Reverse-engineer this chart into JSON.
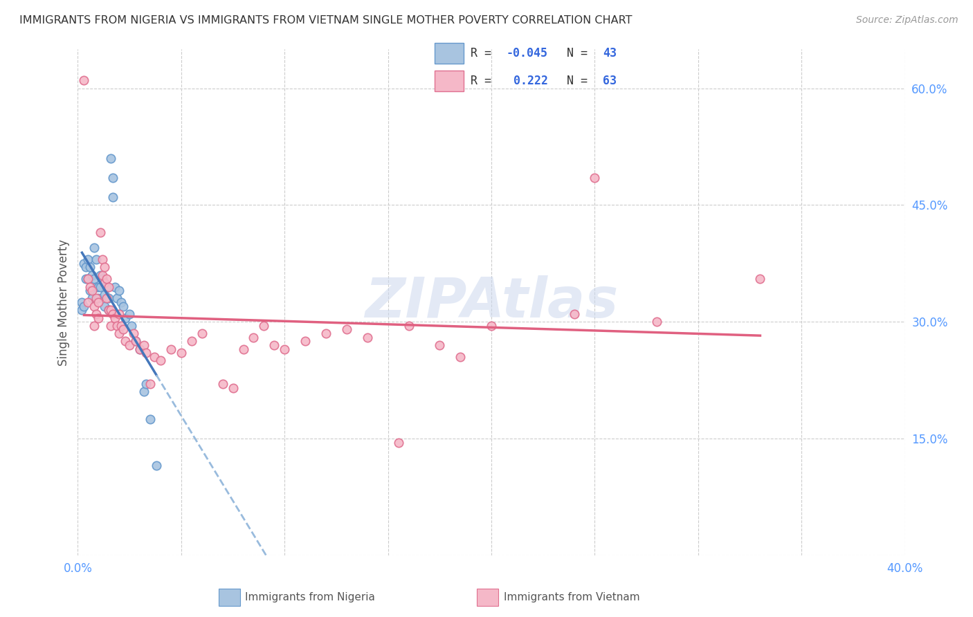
{
  "title": "IMMIGRANTS FROM NIGERIA VS IMMIGRANTS FROM VIETNAM SINGLE MOTHER POVERTY CORRELATION CHART",
  "source": "Source: ZipAtlas.com",
  "ylabel": "Single Mother Poverty",
  "xlim": [
    0.0,
    0.4
  ],
  "ylim": [
    0.0,
    0.65
  ],
  "xtick_positions": [
    0.0,
    0.05,
    0.1,
    0.15,
    0.2,
    0.25,
    0.3,
    0.35,
    0.4
  ],
  "xticklabels": [
    "0.0%",
    "",
    "",
    "",
    "",
    "",
    "",
    "",
    "40.0%"
  ],
  "ytick_positions": [
    0.0,
    0.15,
    0.3,
    0.45,
    0.6
  ],
  "yticklabels_right": [
    "",
    "15.0%",
    "30.0%",
    "45.0%",
    "60.0%"
  ],
  "nigeria_color": "#a8c4e0",
  "nigeria_edge_color": "#6699cc",
  "vietnam_color": "#f5b8c8",
  "vietnam_edge_color": "#e07090",
  "nigeria_R": -0.045,
  "nigeria_N": 43,
  "vietnam_R": 0.222,
  "vietnam_N": 63,
  "watermark": "ZIPAtlas",
  "nigeria_line_color": "#4477bb",
  "nigeria_dash_color": "#99bbdd",
  "vietnam_line_color": "#e06080",
  "grid_color": "#cccccc",
  "bg_color": "#ffffff",
  "title_color": "#333333",
  "axis_color": "#5599ff",
  "marker_size": 80,
  "nigeria_points": [
    [
      0.002,
      0.325
    ],
    [
      0.002,
      0.315
    ],
    [
      0.003,
      0.375
    ],
    [
      0.003,
      0.32
    ],
    [
      0.004,
      0.37
    ],
    [
      0.004,
      0.355
    ],
    [
      0.005,
      0.38
    ],
    [
      0.005,
      0.355
    ],
    [
      0.006,
      0.37
    ],
    [
      0.006,
      0.34
    ],
    [
      0.007,
      0.36
    ],
    [
      0.007,
      0.33
    ],
    [
      0.008,
      0.395
    ],
    [
      0.008,
      0.355
    ],
    [
      0.009,
      0.38
    ],
    [
      0.009,
      0.345
    ],
    [
      0.01,
      0.345
    ],
    [
      0.01,
      0.33
    ],
    [
      0.011,
      0.36
    ],
    [
      0.011,
      0.345
    ],
    [
      0.012,
      0.355
    ],
    [
      0.013,
      0.335
    ],
    [
      0.013,
      0.32
    ],
    [
      0.014,
      0.345
    ],
    [
      0.015,
      0.33
    ],
    [
      0.015,
      0.315
    ],
    [
      0.016,
      0.51
    ],
    [
      0.017,
      0.485
    ],
    [
      0.017,
      0.46
    ],
    [
      0.018,
      0.345
    ],
    [
      0.019,
      0.33
    ],
    [
      0.02,
      0.34
    ],
    [
      0.021,
      0.325
    ],
    [
      0.022,
      0.32
    ],
    [
      0.023,
      0.305
    ],
    [
      0.025,
      0.31
    ],
    [
      0.026,
      0.295
    ],
    [
      0.028,
      0.275
    ],
    [
      0.03,
      0.265
    ],
    [
      0.032,
      0.21
    ],
    [
      0.033,
      0.22
    ],
    [
      0.035,
      0.175
    ],
    [
      0.038,
      0.115
    ]
  ],
  "vietnam_points": [
    [
      0.003,
      0.61
    ],
    [
      0.005,
      0.355
    ],
    [
      0.005,
      0.325
    ],
    [
      0.006,
      0.345
    ],
    [
      0.007,
      0.34
    ],
    [
      0.008,
      0.32
    ],
    [
      0.008,
      0.295
    ],
    [
      0.009,
      0.33
    ],
    [
      0.009,
      0.31
    ],
    [
      0.01,
      0.325
    ],
    [
      0.01,
      0.305
    ],
    [
      0.011,
      0.415
    ],
    [
      0.012,
      0.38
    ],
    [
      0.012,
      0.36
    ],
    [
      0.013,
      0.37
    ],
    [
      0.013,
      0.35
    ],
    [
      0.014,
      0.355
    ],
    [
      0.014,
      0.33
    ],
    [
      0.015,
      0.345
    ],
    [
      0.015,
      0.315
    ],
    [
      0.016,
      0.315
    ],
    [
      0.016,
      0.295
    ],
    [
      0.017,
      0.31
    ],
    [
      0.018,
      0.305
    ],
    [
      0.019,
      0.295
    ],
    [
      0.02,
      0.31
    ],
    [
      0.02,
      0.285
    ],
    [
      0.021,
      0.295
    ],
    [
      0.022,
      0.29
    ],
    [
      0.023,
      0.275
    ],
    [
      0.025,
      0.27
    ],
    [
      0.027,
      0.285
    ],
    [
      0.028,
      0.275
    ],
    [
      0.03,
      0.265
    ],
    [
      0.032,
      0.27
    ],
    [
      0.033,
      0.26
    ],
    [
      0.035,
      0.22
    ],
    [
      0.037,
      0.255
    ],
    [
      0.04,
      0.25
    ],
    [
      0.045,
      0.265
    ],
    [
      0.05,
      0.26
    ],
    [
      0.055,
      0.275
    ],
    [
      0.06,
      0.285
    ],
    [
      0.07,
      0.22
    ],
    [
      0.075,
      0.215
    ],
    [
      0.08,
      0.265
    ],
    [
      0.085,
      0.28
    ],
    [
      0.09,
      0.295
    ],
    [
      0.095,
      0.27
    ],
    [
      0.1,
      0.265
    ],
    [
      0.11,
      0.275
    ],
    [
      0.12,
      0.285
    ],
    [
      0.13,
      0.29
    ],
    [
      0.14,
      0.28
    ],
    [
      0.155,
      0.145
    ],
    [
      0.16,
      0.295
    ],
    [
      0.175,
      0.27
    ],
    [
      0.185,
      0.255
    ],
    [
      0.2,
      0.295
    ],
    [
      0.24,
      0.31
    ],
    [
      0.25,
      0.485
    ],
    [
      0.28,
      0.3
    ],
    [
      0.33,
      0.355
    ]
  ]
}
